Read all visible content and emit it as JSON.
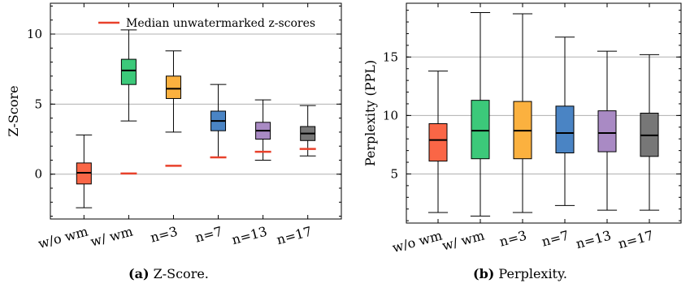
{
  "chart_data": [
    {
      "type": "box",
      "ylabel": "Z-Score",
      "xlabel": "",
      "ylim": [
        -3.2,
        12.2
      ],
      "yticks": [
        0,
        5,
        10
      ],
      "categories": [
        "w/o wm",
        "w/ wm",
        "n=3",
        "n=7",
        "n=13",
        "n=17"
      ],
      "box_colors": [
        "#fa6646",
        "#3cc97a",
        "#fbb13f",
        "#4a84c4",
        "#a98ac4",
        "#777777"
      ],
      "boxes": [
        {
          "whisker_low": -2.4,
          "q1": -0.7,
          "median": 0.1,
          "q3": 0.8,
          "whisker_high": 2.8
        },
        {
          "whisker_low": 3.8,
          "q1": 6.4,
          "median": 7.4,
          "q3": 8.2,
          "whisker_high": 10.3
        },
        {
          "whisker_low": 3.0,
          "q1": 5.4,
          "median": 6.1,
          "q3": 7.0,
          "whisker_high": 8.8
        },
        {
          "whisker_low": 1.2,
          "q1": 3.1,
          "median": 3.8,
          "q3": 4.5,
          "whisker_high": 6.4
        },
        {
          "whisker_low": 1.0,
          "q1": 2.5,
          "median": 3.1,
          "q3": 3.7,
          "whisker_high": 5.3
        },
        {
          "whisker_low": 1.3,
          "q1": 2.4,
          "median": 2.9,
          "q3": 3.4,
          "whisker_high": 4.9
        }
      ],
      "median_unwatermarked": [
        0.05,
        0.6,
        1.2,
        1.6,
        1.8
      ],
      "legend": {
        "label": "Median unwatermarked z-scores",
        "color": "#e8412b",
        "position": "top-right"
      },
      "grid": "y",
      "caption_label": "(a)",
      "caption_text": "Z-Score."
    },
    {
      "type": "box",
      "ylabel": "Perplexity (PPL)",
      "xlabel": "",
      "ylim": [
        0.8,
        19.6
      ],
      "yticks": [
        5,
        10,
        15
      ],
      "categories": [
        "w/o wm",
        "w/ wm",
        "n=3",
        "n=7",
        "n=13",
        "n=17"
      ],
      "box_colors": [
        "#fa6646",
        "#3cc97a",
        "#fbb13f",
        "#4a84c4",
        "#a98ac4",
        "#777777"
      ],
      "boxes": [
        {
          "whisker_low": 1.7,
          "q1": 6.1,
          "median": 7.9,
          "q3": 9.3,
          "whisker_high": 13.8
        },
        {
          "whisker_low": 1.4,
          "q1": 6.3,
          "median": 8.7,
          "q3": 11.3,
          "whisker_high": 18.8
        },
        {
          "whisker_low": 1.7,
          "q1": 6.3,
          "median": 8.7,
          "q3": 11.2,
          "whisker_high": 18.7
        },
        {
          "whisker_low": 2.3,
          "q1": 6.8,
          "median": 8.5,
          "q3": 10.8,
          "whisker_high": 16.7
        },
        {
          "whisker_low": 1.9,
          "q1": 6.9,
          "median": 8.5,
          "q3": 10.4,
          "whisker_high": 15.5
        },
        {
          "whisker_low": 1.9,
          "q1": 6.5,
          "median": 8.3,
          "q3": 10.2,
          "whisker_high": 15.2
        }
      ],
      "grid": "y",
      "caption_label": "(b)",
      "caption_text": "Perplexity."
    }
  ]
}
